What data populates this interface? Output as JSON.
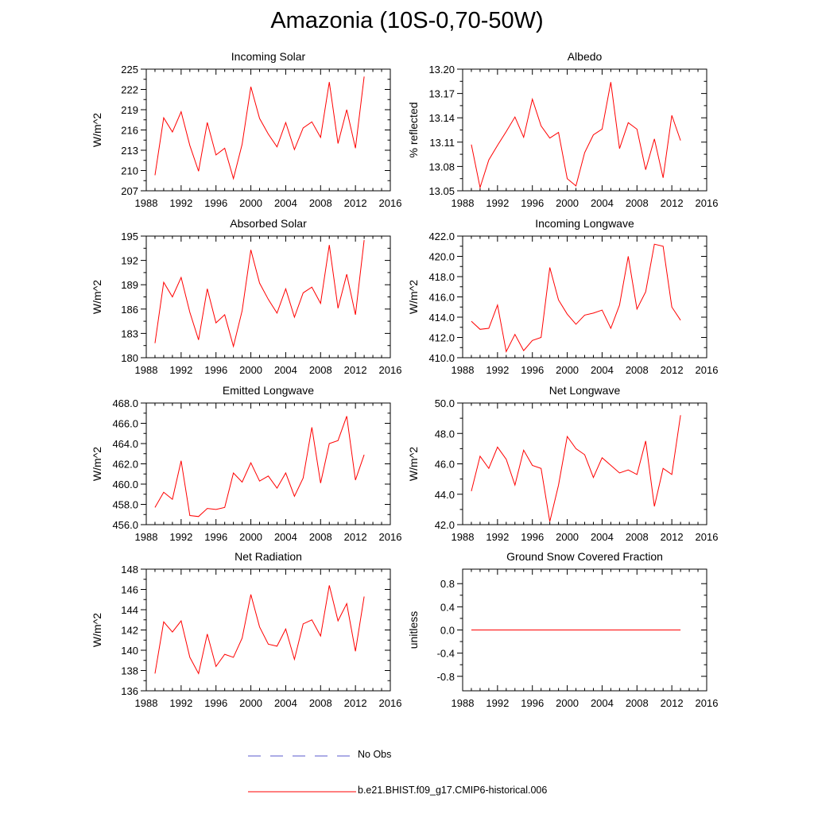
{
  "title": "Amazonia (10S-0,70-50W)",
  "colors": {
    "model": "#ff0000",
    "obs": "#5a5acd",
    "axis": "#000000"
  },
  "legend": {
    "obs_label": "No Obs",
    "model_label": "b.e21.BHIST.f09_g17.CMIP6-historical.006"
  },
  "chart_data": [
    {
      "type": "line",
      "title": "Incoming Solar",
      "ylabel": "W/m^2",
      "xlim": [
        1988,
        2016
      ],
      "xticks": [
        1988,
        1992,
        1996,
        2000,
        2004,
        2008,
        2012,
        2016
      ],
      "ylim": [
        207,
        225
      ],
      "yticks": [
        207,
        210,
        213,
        216,
        219,
        222,
        225
      ],
      "ydecimals": 0,
      "x": [
        1989,
        1990,
        1991,
        1992,
        1993,
        1994,
        1995,
        1996,
        1997,
        1998,
        1999,
        2000,
        2001,
        2002,
        2003,
        2004,
        2005,
        2006,
        2007,
        2008,
        2009,
        2010,
        2011,
        2012,
        2013
      ],
      "y": [
        209.3,
        217.8,
        215.7,
        218.7,
        213.7,
        209.9,
        217.1,
        212.3,
        213.3,
        208.8,
        213.9,
        222.4,
        217.7,
        215.4,
        213.5,
        217.1,
        213.1,
        216.3,
        217.2,
        214.9,
        223.1,
        214.0,
        219.0,
        213.3,
        223.9
      ]
    },
    {
      "type": "line",
      "title": "Albedo",
      "ylabel": "% reflected",
      "xlim": [
        1988,
        2016
      ],
      "xticks": [
        1988,
        1992,
        1996,
        2000,
        2004,
        2008,
        2012,
        2016
      ],
      "ylim": [
        13.05,
        13.2
      ],
      "yticks": [
        13.05,
        13.08,
        13.11,
        13.14,
        13.17,
        13.2
      ],
      "ydecimals": 2,
      "x": [
        1989,
        1990,
        1991,
        1992,
        1993,
        1994,
        1995,
        1996,
        1997,
        1998,
        1999,
        2000,
        2001,
        2002,
        2003,
        2004,
        2005,
        2006,
        2007,
        2008,
        2009,
        2010,
        2011,
        2012,
        2013
      ],
      "y": [
        13.107,
        13.054,
        13.088,
        13.106,
        13.123,
        13.141,
        13.116,
        13.163,
        13.13,
        13.115,
        13.122,
        13.065,
        13.056,
        13.097,
        13.119,
        13.126,
        13.184,
        13.102,
        13.134,
        13.126,
        13.076,
        13.114,
        13.066,
        13.143,
        13.112
      ]
    },
    {
      "type": "line",
      "title": "Absorbed Solar",
      "ylabel": "W/m^2",
      "xlim": [
        1988,
        2016
      ],
      "xticks": [
        1988,
        1992,
        1996,
        2000,
        2004,
        2008,
        2012,
        2016
      ],
      "ylim": [
        180,
        195
      ],
      "yticks": [
        180,
        183,
        186,
        189,
        192,
        195
      ],
      "ydecimals": 0,
      "x": [
        1989,
        1990,
        1991,
        1992,
        1993,
        1994,
        1995,
        1996,
        1997,
        1998,
        1999,
        2000,
        2001,
        2002,
        2003,
        2004,
        2005,
        2006,
        2007,
        2008,
        2009,
        2010,
        2011,
        2012,
        2013
      ],
      "y": [
        181.8,
        189.3,
        187.5,
        189.9,
        185.6,
        182.2,
        188.5,
        184.3,
        185.3,
        181.4,
        185.8,
        193.3,
        189.2,
        187.2,
        185.5,
        188.5,
        185.0,
        188.0,
        188.7,
        186.7,
        193.9,
        186.1,
        190.3,
        185.3,
        194.5
      ]
    },
    {
      "type": "line",
      "title": "Incoming Longwave",
      "ylabel": "W/m^2",
      "xlim": [
        1988,
        2016
      ],
      "xticks": [
        1988,
        1992,
        1996,
        2000,
        2004,
        2008,
        2012,
        2016
      ],
      "ylim": [
        410,
        422
      ],
      "yticks": [
        410,
        412,
        414,
        416,
        418,
        420,
        422
      ],
      "ydecimals": 1,
      "x": [
        1989,
        1990,
        1991,
        1992,
        1993,
        1994,
        1995,
        1996,
        1997,
        1998,
        1999,
        2000,
        2001,
        2002,
        2003,
        2004,
        2005,
        2006,
        2007,
        2008,
        2009,
        2010,
        2011,
        2012,
        2013
      ],
      "y": [
        413.6,
        412.8,
        412.9,
        415.2,
        410.6,
        412.3,
        410.7,
        411.7,
        412.0,
        418.9,
        415.7,
        414.3,
        413.3,
        414.2,
        414.4,
        414.7,
        412.9,
        415.2,
        420.0,
        414.8,
        416.5,
        421.2,
        421.0,
        415.0,
        413.7
      ]
    },
    {
      "type": "line",
      "title": "Emitted Longwave",
      "ylabel": "W/m^2",
      "xlim": [
        1988,
        2016
      ],
      "xticks": [
        1988,
        1992,
        1996,
        2000,
        2004,
        2008,
        2012,
        2016
      ],
      "ylim": [
        456,
        468
      ],
      "yticks": [
        456,
        458,
        460,
        462,
        464,
        466,
        468
      ],
      "ydecimals": 1,
      "x": [
        1989,
        1990,
        1991,
        1992,
        1993,
        1994,
        1995,
        1996,
        1997,
        1998,
        1999,
        2000,
        2001,
        2002,
        2003,
        2004,
        2005,
        2006,
        2007,
        2008,
        2009,
        2010,
        2011,
        2012,
        2013
      ],
      "y": [
        457.7,
        459.2,
        458.5,
        462.3,
        456.9,
        456.8,
        457.6,
        457.5,
        457.7,
        461.1,
        460.2,
        462.1,
        460.3,
        460.8,
        459.6,
        461.1,
        458.8,
        460.6,
        465.6,
        460.1,
        464.0,
        464.3,
        466.7,
        460.4,
        462.9
      ]
    },
    {
      "type": "line",
      "title": "Net Longwave",
      "ylabel": "W/m^2",
      "xlim": [
        1988,
        2016
      ],
      "xticks": [
        1988,
        1992,
        1996,
        2000,
        2004,
        2008,
        2012,
        2016
      ],
      "ylim": [
        42,
        50
      ],
      "yticks": [
        42,
        44,
        46,
        48,
        50
      ],
      "ydecimals": 1,
      "x": [
        1989,
        1990,
        1991,
        1992,
        1993,
        1994,
        1995,
        1996,
        1997,
        1998,
        1999,
        2000,
        2001,
        2002,
        2003,
        2004,
        2005,
        2006,
        2007,
        2008,
        2009,
        2010,
        2011,
        2012,
        2013
      ],
      "y": [
        44.2,
        46.5,
        45.7,
        47.1,
        46.3,
        44.6,
        46.9,
        45.9,
        45.7,
        42.2,
        44.6,
        47.8,
        47.0,
        46.6,
        45.1,
        46.4,
        45.9,
        45.4,
        45.6,
        45.3,
        47.5,
        43.2,
        45.7,
        45.3,
        49.2
      ]
    },
    {
      "type": "line",
      "title": "Net Radiation",
      "ylabel": "W/m^2",
      "xlim": [
        1988,
        2016
      ],
      "xticks": [
        1988,
        1992,
        1996,
        2000,
        2004,
        2008,
        2012,
        2016
      ],
      "ylim": [
        136,
        148
      ],
      "yticks": [
        136,
        138,
        140,
        142,
        144,
        146,
        148
      ],
      "ydecimals": 0,
      "x": [
        1989,
        1990,
        1991,
        1992,
        1993,
        1994,
        1995,
        1996,
        1997,
        1998,
        1999,
        2000,
        2001,
        2002,
        2003,
        2004,
        2005,
        2006,
        2007,
        2008,
        2009,
        2010,
        2011,
        2012,
        2013
      ],
      "y": [
        137.7,
        142.8,
        141.8,
        142.9,
        139.3,
        137.7,
        141.6,
        138.4,
        139.6,
        139.3,
        141.2,
        145.5,
        142.3,
        140.6,
        140.4,
        142.1,
        139.1,
        142.6,
        143.0,
        141.4,
        146.4,
        142.9,
        144.6,
        139.9,
        145.3
      ]
    },
    {
      "type": "line",
      "title": "Ground Snow Covered Fraction",
      "ylabel": "unitless",
      "xlim": [
        1988,
        2016
      ],
      "xticks": [
        1988,
        1992,
        1996,
        2000,
        2004,
        2008,
        2012,
        2016
      ],
      "ylim": [
        -1.05,
        1.05
      ],
      "yticks": [
        -0.8,
        -0.4,
        0.0,
        0.4,
        0.8
      ],
      "ydecimals": 1,
      "x": [
        1989,
        1990,
        1991,
        1992,
        1993,
        1994,
        1995,
        1996,
        1997,
        1998,
        1999,
        2000,
        2001,
        2002,
        2003,
        2004,
        2005,
        2006,
        2007,
        2008,
        2009,
        2010,
        2011,
        2012,
        2013
      ],
      "y": [
        0,
        0,
        0,
        0,
        0,
        0,
        0,
        0,
        0,
        0,
        0,
        0,
        0,
        0,
        0,
        0,
        0,
        0,
        0,
        0,
        0,
        0,
        0,
        0,
        0
      ]
    }
  ]
}
